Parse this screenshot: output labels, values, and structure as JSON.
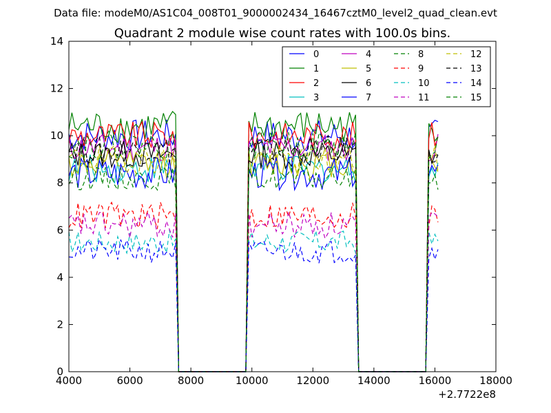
{
  "figure": {
    "suptitle": "Data file: modeM0/AS1C04_008T01_9000002434_16467cztM0_level2_quad_clean.evt"
  },
  "chart_data": {
    "type": "line",
    "title": "Quadrant 2 module wise count rates with 100.0s bins.",
    "xlabel": "",
    "ylabel": "",
    "x_offset_label": "+2.7722e8",
    "xlim": [
      4000,
      18000
    ],
    "ylim": [
      0,
      14
    ],
    "x_ticks": [
      4000,
      6000,
      8000,
      10000,
      12000,
      14000,
      16000,
      18000
    ],
    "x_tick_labels": [
      "4000",
      "6000",
      "8000",
      "10000",
      "12000",
      "14000",
      "16000",
      "18000"
    ],
    "y_ticks": [
      0,
      2,
      4,
      6,
      8,
      10,
      12,
      14
    ],
    "y_tick_labels": [
      "0",
      "2",
      "4",
      "6",
      "8",
      "10",
      "12",
      "14"
    ],
    "grid": false,
    "legend_position": "top-right",
    "legend_columns": 4,
    "segments": [
      {
        "start": 4000,
        "end": 7500
      },
      {
        "start": 9900,
        "end": 13400
      },
      {
        "start": 15800,
        "end": 16100
      }
    ],
    "gap_points": [
      7600,
      7700,
      9800
    ],
    "gap_after": [
      13500,
      13600,
      15600,
      15700
    ],
    "series": [
      {
        "name": "0",
        "level": 10.0,
        "noise": 0.35,
        "color": "#0000ff",
        "dash": "solid"
      },
      {
        "name": "1",
        "level": 10.4,
        "noise": 0.35,
        "color": "#008000",
        "dash": "solid"
      },
      {
        "name": "2",
        "level": 10.0,
        "noise": 0.3,
        "color": "#ff0000",
        "dash": "solid"
      },
      {
        "name": "3",
        "level": 8.6,
        "noise": 0.3,
        "color": "#00bfbf",
        "dash": "solid"
      },
      {
        "name": "4",
        "level": 9.5,
        "noise": 0.3,
        "color": "#bf00bf",
        "dash": "solid"
      },
      {
        "name": "5",
        "level": 8.8,
        "noise": 0.3,
        "color": "#bfbf00",
        "dash": "solid"
      },
      {
        "name": "6",
        "level": 9.2,
        "noise": 0.3,
        "color": "#000000",
        "dash": "solid"
      },
      {
        "name": "7",
        "level": 8.4,
        "noise": 0.35,
        "color": "#0000ff",
        "dash": "solid"
      },
      {
        "name": "8",
        "level": 8.2,
        "noise": 0.25,
        "color": "#008000",
        "dash": "dashed"
      },
      {
        "name": "9",
        "level": 6.6,
        "noise": 0.3,
        "color": "#ff0000",
        "dash": "dashed"
      },
      {
        "name": "10",
        "level": 5.5,
        "noise": 0.25,
        "color": "#00bfbf",
        "dash": "dashed"
      },
      {
        "name": "11",
        "level": 6.2,
        "noise": 0.3,
        "color": "#bf00bf",
        "dash": "dashed"
      },
      {
        "name": "12",
        "level": 9.0,
        "noise": 0.3,
        "color": "#bfbf00",
        "dash": "dashed"
      },
      {
        "name": "13",
        "level": 9.4,
        "noise": 0.3,
        "color": "#000000",
        "dash": "dashed"
      },
      {
        "name": "14",
        "level": 5.1,
        "noise": 0.25,
        "color": "#0000ff",
        "dash": "dashed"
      },
      {
        "name": "15",
        "level": 9.6,
        "noise": 0.3,
        "color": "#008000",
        "dash": "dashed"
      }
    ]
  }
}
